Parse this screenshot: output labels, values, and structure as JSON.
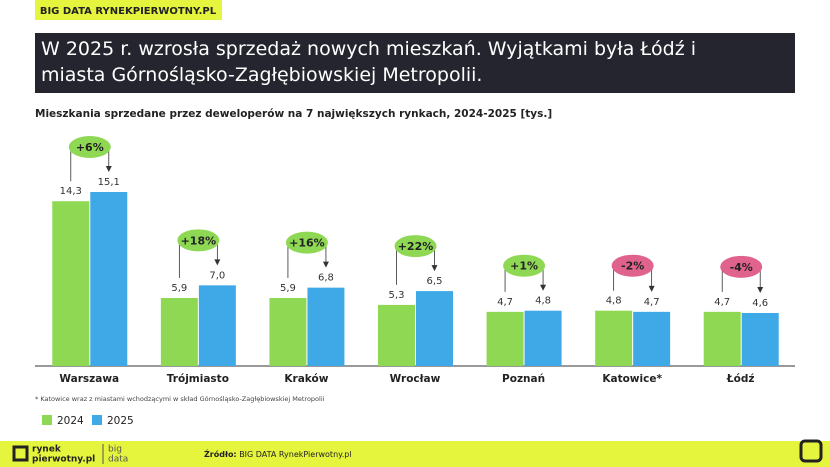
{
  "brand": "BIG DATA RYNEKPIERWOTNY.PL",
  "headline": "W 2025 r. wzrosła sprzedaż nowych mieszkań. Wyjątkami była Łódź i miasta Górnośląsko-Zagłębiowskiej Metropolii.",
  "chart_data": {
    "type": "bar",
    "title": "Mieszkania sprzedane przez deweloperów na 7 największych rynkach, 2024-2025 [tys.]",
    "categories": [
      "Warszawa",
      "Trójmiasto",
      "Kraków",
      "Wrocław",
      "Poznań",
      "Katowice*",
      "Łódź"
    ],
    "series": [
      {
        "name": "2024",
        "color": "#8ed854",
        "values": [
          14.3,
          5.9,
          5.9,
          5.3,
          4.7,
          4.8,
          4.7
        ],
        "value_labels": [
          "14,3",
          "5,9",
          "5,9",
          "5,3",
          "4,7",
          "4,8",
          "4,7"
        ]
      },
      {
        "name": "2025",
        "color": "#3fa9e8",
        "values": [
          15.1,
          7.0,
          6.8,
          6.5,
          4.8,
          4.7,
          4.6
        ],
        "value_labels": [
          "15,1",
          "7,0",
          "6,8",
          "6,5",
          "4,8",
          "4,7",
          "4,6"
        ]
      }
    ],
    "changes": [
      {
        "label": "+6%",
        "color": "#8ed854"
      },
      {
        "label": "+18%",
        "color": "#8ed854"
      },
      {
        "label": "+16%",
        "color": "#8ed854"
      },
      {
        "label": "+22%",
        "color": "#8ed854"
      },
      {
        "label": "+1%",
        "color": "#8ed854"
      },
      {
        "label": "-2%",
        "color": "#e0638e"
      },
      {
        "label": "-4%",
        "color": "#e0638e"
      }
    ],
    "footnote": "* Katowice wraz z miastami wchodzącymi w skład Górnośląsko-Zagłębiowskiej Metropolii"
  },
  "footer": {
    "logo_top": "rynek",
    "logo_bottom": "pierwotny.pl",
    "logo_side_top": "big",
    "logo_side_bottom": "data",
    "source_label": "Źródło:",
    "source": "BIG DATA RynekPierwotny.pl"
  }
}
